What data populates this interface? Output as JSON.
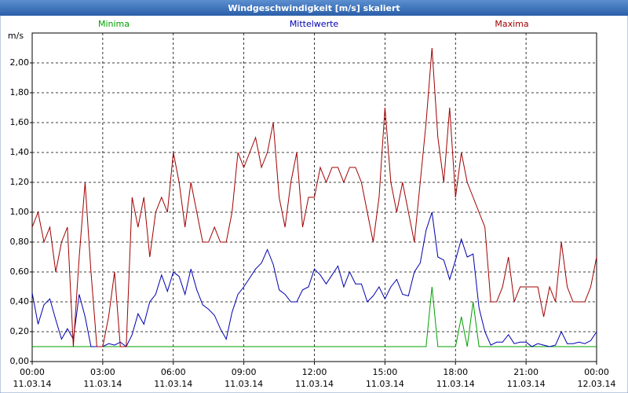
{
  "chart_data": {
    "type": "line",
    "title": "Windgeschwindigkeit [m/s] skaliert",
    "y_label": "m/s",
    "x": [
      0,
      0.25,
      0.5,
      0.75,
      1,
      1.25,
      1.5,
      1.75,
      2,
      2.25,
      2.5,
      2.75,
      3,
      3.25,
      3.5,
      3.75,
      4,
      4.25,
      4.5,
      4.75,
      5,
      5.25,
      5.5,
      5.75,
      6,
      6.25,
      6.5,
      6.75,
      7,
      7.25,
      7.5,
      7.75,
      8,
      8.25,
      8.5,
      8.75,
      9,
      9.25,
      9.5,
      9.75,
      10,
      10.25,
      10.5,
      10.75,
      11,
      11.25,
      11.5,
      11.75,
      12,
      12.25,
      12.5,
      12.75,
      13,
      13.25,
      13.5,
      13.75,
      14,
      14.25,
      14.5,
      14.75,
      15,
      15.25,
      15.5,
      15.75,
      16,
      16.25,
      16.5,
      16.75,
      17,
      17.25,
      17.5,
      17.75,
      18,
      18.25,
      18.5,
      18.75,
      19,
      19.25,
      19.5,
      19.75,
      20,
      20.25,
      20.5,
      20.75,
      21,
      21.25,
      21.5,
      21.75,
      22,
      22.25,
      22.5,
      22.75,
      23,
      23.25,
      23.5,
      23.75,
      24
    ],
    "xlim": [
      0,
      24
    ],
    "xticks": [
      {
        "value": 0,
        "label": "00:00"
      },
      {
        "value": 3,
        "label": "03:00"
      },
      {
        "value": 6,
        "label": "06:00"
      },
      {
        "value": 9,
        "label": "09:00"
      },
      {
        "value": 12,
        "label": "12:00"
      },
      {
        "value": 15,
        "label": "15:00"
      },
      {
        "value": 18,
        "label": "18:00"
      },
      {
        "value": 21,
        "label": "21:00"
      },
      {
        "value": 24,
        "label": "00:00"
      }
    ],
    "xtick_dates": [
      "11.03.14",
      "11.03.14",
      "11.03.14",
      "11.03.14",
      "11.03.14",
      "11.03.14",
      "11.03.14",
      "11.03.14",
      "12.03.14"
    ],
    "ylim": [
      0,
      2.2
    ],
    "yticks": [
      {
        "value": 0,
        "label": "0,00"
      },
      {
        "value": 0.2,
        "label": "0,20"
      },
      {
        "value": 0.4,
        "label": "0,40"
      },
      {
        "value": 0.6,
        "label": "0,60"
      },
      {
        "value": 0.8,
        "label": "0,80"
      },
      {
        "value": 1,
        "label": "1,00"
      },
      {
        "value": 1.2,
        "label": "1,20"
      },
      {
        "value": 1.4,
        "label": "1,40"
      },
      {
        "value": 1.6,
        "label": "1,60"
      },
      {
        "value": 1.8,
        "label": "1,80"
      },
      {
        "value": 2,
        "label": "2,00"
      }
    ],
    "grid": true,
    "series": [
      {
        "name": "Minima",
        "color": "#00a000",
        "values": [
          0.1,
          0.1,
          0.1,
          0.1,
          0.1,
          0.1,
          0.1,
          0.1,
          0.1,
          0.1,
          0.1,
          0.1,
          0.1,
          0.1,
          0.1,
          0.1,
          0.1,
          0.1,
          0.1,
          0.1,
          0.1,
          0.1,
          0.1,
          0.1,
          0.1,
          0.1,
          0.1,
          0.1,
          0.1,
          0.1,
          0.1,
          0.1,
          0.1,
          0.1,
          0.1,
          0.1,
          0.1,
          0.1,
          0.1,
          0.1,
          0.1,
          0.1,
          0.1,
          0.1,
          0.1,
          0.1,
          0.1,
          0.1,
          0.1,
          0.1,
          0.1,
          0.1,
          0.1,
          0.1,
          0.1,
          0.1,
          0.1,
          0.1,
          0.1,
          0.1,
          0.1,
          0.1,
          0.1,
          0.1,
          0.1,
          0.1,
          0.1,
          0.1,
          0.5,
          0.1,
          0.1,
          0.1,
          0.1,
          0.3,
          0.1,
          0.4,
          0.1,
          0.1,
          0.1,
          0.1,
          0.1,
          0.1,
          0.1,
          0.1,
          0.1,
          0.1,
          0.1,
          0.1,
          0.1,
          0.1,
          0.1,
          0.1,
          0.1,
          0.1,
          0.1,
          0.1,
          0.1
        ]
      },
      {
        "name": "Mittelwerte",
        "color": "#0000b0",
        "values": [
          0.46,
          0.25,
          0.38,
          0.42,
          0.28,
          0.15,
          0.22,
          0.15,
          0.45,
          0.3,
          0.1,
          0.1,
          0.1,
          0.12,
          0.11,
          0.13,
          0.1,
          0.18,
          0.32,
          0.25,
          0.4,
          0.45,
          0.58,
          0.47,
          0.6,
          0.57,
          0.45,
          0.62,
          0.48,
          0.38,
          0.35,
          0.31,
          0.22,
          0.15,
          0.33,
          0.45,
          0.5,
          0.56,
          0.62,
          0.66,
          0.75,
          0.65,
          0.48,
          0.45,
          0.4,
          0.4,
          0.48,
          0.5,
          0.62,
          0.58,
          0.52,
          0.58,
          0.64,
          0.5,
          0.6,
          0.52,
          0.52,
          0.4,
          0.44,
          0.5,
          0.42,
          0.5,
          0.55,
          0.45,
          0.44,
          0.6,
          0.66,
          0.88,
          1.0,
          0.7,
          0.68,
          0.55,
          0.68,
          0.82,
          0.7,
          0.72,
          0.36,
          0.2,
          0.11,
          0.13,
          0.13,
          0.18,
          0.12,
          0.13,
          0.13,
          0.1,
          0.12,
          0.11,
          0.1,
          0.11,
          0.2,
          0.12,
          0.12,
          0.13,
          0.12,
          0.14,
          0.2
        ]
      },
      {
        "name": "Maxima",
        "color": "#a00000",
        "values": [
          0.9,
          1.0,
          0.8,
          0.9,
          0.6,
          0.8,
          0.9,
          0.1,
          0.7,
          1.2,
          0.6,
          0.1,
          0.1,
          0.3,
          0.6,
          0.1,
          0.1,
          1.1,
          0.9,
          1.1,
          0.7,
          1.0,
          1.1,
          1.0,
          1.4,
          1.2,
          0.9,
          1.2,
          1.0,
          0.8,
          0.8,
          0.9,
          0.8,
          0.8,
          1.0,
          1.4,
          1.3,
          1.4,
          1.5,
          1.3,
          1.4,
          1.6,
          1.1,
          0.9,
          1.2,
          1.4,
          0.9,
          1.1,
          1.1,
          1.3,
          1.2,
          1.3,
          1.3,
          1.2,
          1.3,
          1.3,
          1.2,
          1.0,
          0.8,
          1.1,
          1.7,
          1.2,
          1.0,
          1.2,
          1.0,
          0.8,
          1.2,
          1.6,
          2.1,
          1.5,
          1.2,
          1.7,
          1.1,
          1.4,
          1.2,
          1.1,
          1.0,
          0.9,
          0.4,
          0.4,
          0.5,
          0.7,
          0.4,
          0.5,
          0.5,
          0.5,
          0.5,
          0.3,
          0.5,
          0.4,
          0.8,
          0.5,
          0.4,
          0.4,
          0.4,
          0.5,
          0.7
        ]
      }
    ]
  }
}
